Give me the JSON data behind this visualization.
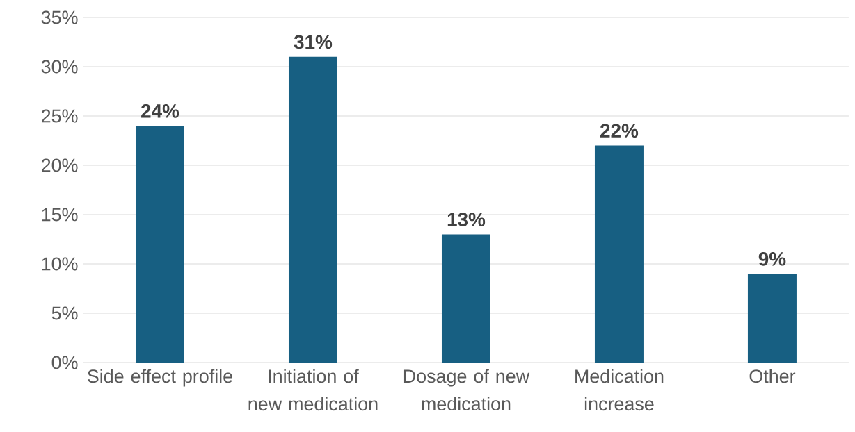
{
  "chart_data": {
    "type": "bar",
    "categories": [
      "Side effect profile",
      "Initiation of new medication",
      "Dosage of new medication",
      "Medication increase",
      "Other"
    ],
    "values": [
      24,
      31,
      13,
      22,
      9
    ],
    "value_labels": [
      "24%",
      "31%",
      "13%",
      "22%",
      "9%"
    ],
    "color": "#175f82",
    "ylim": [
      0,
      35
    ],
    "yticks": [
      {
        "value": 0,
        "label": "0%"
      },
      {
        "value": 5,
        "label": "5%"
      },
      {
        "value": 10,
        "label": "10%"
      },
      {
        "value": 15,
        "label": "15%"
      },
      {
        "value": 20,
        "label": "20%"
      },
      {
        "value": 25,
        "label": "25%"
      },
      {
        "value": 30,
        "label": "30%"
      },
      {
        "value": 35,
        "label": "35%"
      }
    ],
    "grid": "y"
  }
}
